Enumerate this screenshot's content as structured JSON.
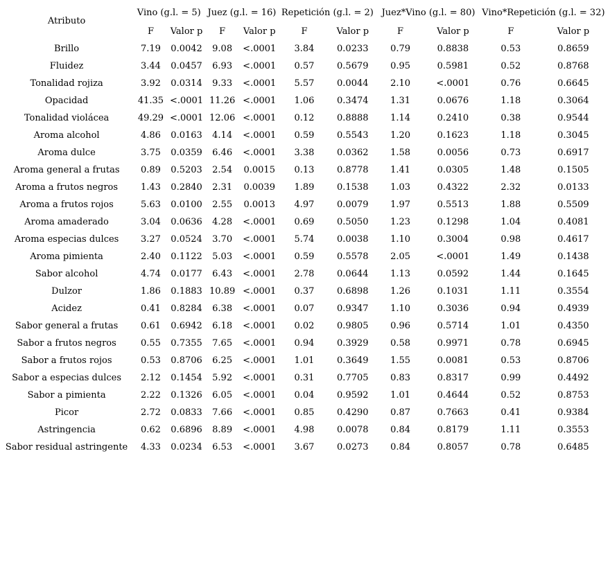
{
  "table": {
    "attribute_header": "Atributo",
    "groups": [
      {
        "label": "Vino (g.l. = 5)",
        "sub": [
          "F",
          "Valor p"
        ]
      },
      {
        "label": "Juez (g.l. = 16)",
        "sub": [
          "F",
          "Valor p"
        ]
      },
      {
        "label": "Repetición (g.l. = 2)",
        "sub": [
          "F",
          "Valor p"
        ]
      },
      {
        "label": "Juez*Vino (g.l. = 80)",
        "sub": [
          "F",
          "Valor p"
        ]
      },
      {
        "label": "Vino*Repetición (g.l. = 32)",
        "sub": [
          "F",
          "Valor p"
        ]
      }
    ],
    "rows": [
      {
        "attribute": "Brillo",
        "values": [
          "7.19",
          "0.0042",
          "9.08",
          "<.0001",
          "3.84",
          "0.0233",
          "0.79",
          "0.8838",
          "0.53",
          "0.8659"
        ]
      },
      {
        "attribute": "Fluidez",
        "values": [
          "3.44",
          "0.0457",
          "6.93",
          "<.0001",
          "0.57",
          "0.5679",
          "0.95",
          "0.5981",
          "0.52",
          "0.8768"
        ]
      },
      {
        "attribute": "Tonalidad rojiza",
        "values": [
          "3.92",
          "0.0314",
          "9.33",
          "<.0001",
          "5.57",
          "0.0044",
          "2.10",
          "<.0001",
          "0.76",
          "0.6645"
        ]
      },
      {
        "attribute": "Opacidad",
        "values": [
          "41.35",
          "<.0001",
          "11.26",
          "<.0001",
          "1.06",
          "0.3474",
          "1.31",
          "0.0676",
          "1.18",
          "0.3064"
        ]
      },
      {
        "attribute": "Tonalidad violácea",
        "values": [
          "49.29",
          "<.0001",
          "12.06",
          "<.0001",
          "0.12",
          "0.8888",
          "1.14",
          "0.2410",
          "0.38",
          "0.9544"
        ]
      },
      {
        "attribute": "Aroma alcohol",
        "values": [
          "4.86",
          "0.0163",
          "4.14",
          "<.0001",
          "0.59",
          "0.5543",
          "1.20",
          "0.1623",
          "1.18",
          "0.3045"
        ]
      },
      {
        "attribute": "Aroma dulce",
        "values": [
          "3.75",
          "0.0359",
          "6.46",
          "<.0001",
          "3.38",
          "0.0362",
          "1.58",
          "0.0056",
          "0.73",
          "0.6917"
        ]
      },
      {
        "attribute": "Aroma general a frutas",
        "values": [
          "0.89",
          "0.5203",
          "2.54",
          "0.0015",
          "0.13",
          "0.8778",
          "1.41",
          "0.0305",
          "1.48",
          "0.1505"
        ]
      },
      {
        "attribute": "Aroma a frutos negros",
        "values": [
          "1.43",
          "0.2840",
          "2.31",
          "0.0039",
          "1.89",
          "0.1538",
          "1.03",
          "0.4322",
          "2.32",
          "0.0133"
        ]
      },
      {
        "attribute": "Aroma a frutos rojos",
        "values": [
          "5.63",
          "0.0100",
          "2.55",
          "0.0013",
          "4.97",
          "0.0079",
          "1.97",
          "0.5513",
          "1.88",
          "0.5509"
        ]
      },
      {
        "attribute": "Aroma amaderado",
        "values": [
          "3.04",
          "0.0636",
          "4.28",
          "<.0001",
          "0.69",
          "0.5050",
          "1.23",
          "0.1298",
          "1.04",
          "0.4081"
        ]
      },
      {
        "attribute": "Aroma especias dulces",
        "values": [
          "3.27",
          "0.0524",
          "3.70",
          "<.0001",
          "5.74",
          "0.0038",
          "1.10",
          "0.3004",
          "0.98",
          "0.4617"
        ]
      },
      {
        "attribute": "Aroma pimienta",
        "values": [
          "2.40",
          "0.1122",
          "5.03",
          "<.0001",
          "0.59",
          "0.5578",
          "2.05",
          "<.0001",
          "1.49",
          "0.1438"
        ]
      },
      {
        "attribute": "Sabor alcohol",
        "values": [
          "4.74",
          "0.0177",
          "6.43",
          "<.0001",
          "2.78",
          "0.0644",
          "1.13",
          "0.0592",
          "1.44",
          "0.1645"
        ]
      },
      {
        "attribute": "Dulzor",
        "values": [
          "1.86",
          "0.1883",
          "10.89",
          "<.0001",
          "0.37",
          "0.6898",
          "1.26",
          "0.1031",
          "1.11",
          "0.3554"
        ]
      },
      {
        "attribute": "Acidez",
        "values": [
          "0.41",
          "0.8284",
          "6.38",
          "<.0001",
          "0.07",
          "0.9347",
          "1.10",
          "0.3036",
          "0.94",
          "0.4939"
        ]
      },
      {
        "attribute": "Sabor general a frutas",
        "values": [
          "0.61",
          "0.6942",
          "6.18",
          "<.0001",
          "0.02",
          "0.9805",
          "0.96",
          "0.5714",
          "1.01",
          "0.4350"
        ]
      },
      {
        "attribute": "Sabor a frutos negros",
        "values": [
          "0.55",
          "0.7355",
          "7.65",
          "<.0001",
          "0.94",
          "0.3929",
          "0.58",
          "0.9971",
          "0.78",
          "0.6945"
        ]
      },
      {
        "attribute": "Sabor a frutos rojos",
        "values": [
          "0.53",
          "0.8706",
          "6.25",
          "<.0001",
          "1.01",
          "0.3649",
          "1.55",
          "0.0081",
          "0.53",
          "0.8706"
        ]
      },
      {
        "attribute": "Sabor a especias dulces",
        "values": [
          "2.12",
          "0.1454",
          "5.92",
          "<.0001",
          "0.31",
          "0.7705",
          "0.83",
          "0.8317",
          "0.99",
          "0.4492"
        ]
      },
      {
        "attribute": "Sabor a pimienta",
        "values": [
          "2.22",
          "0.1326",
          "6.05",
          "<.0001",
          "0.04",
          "0.9592",
          "1.01",
          "0.4644",
          "0.52",
          "0.8753"
        ]
      },
      {
        "attribute": "Picor",
        "values": [
          "2.72",
          "0.0833",
          "7.66",
          "<.0001",
          "0.85",
          "0.4290",
          "0.87",
          "0.7663",
          "0.41",
          "0.9384"
        ]
      },
      {
        "attribute": "Astringencia",
        "values": [
          "0.62",
          "0.6896",
          "8.89",
          "<.0001",
          "4.98",
          "0.0078",
          "0.84",
          "0.8179",
          "1.11",
          "0.3553"
        ]
      },
      {
        "attribute": "Sabor residual astringente",
        "values": [
          "4.33",
          "0.0234",
          "6.53",
          "<.0001",
          "3.67",
          "0.0273",
          "0.84",
          "0.8057",
          "0.78",
          "0.6485"
        ]
      }
    ]
  },
  "colors": {
    "background": "#ffffff",
    "text": "#000000"
  }
}
